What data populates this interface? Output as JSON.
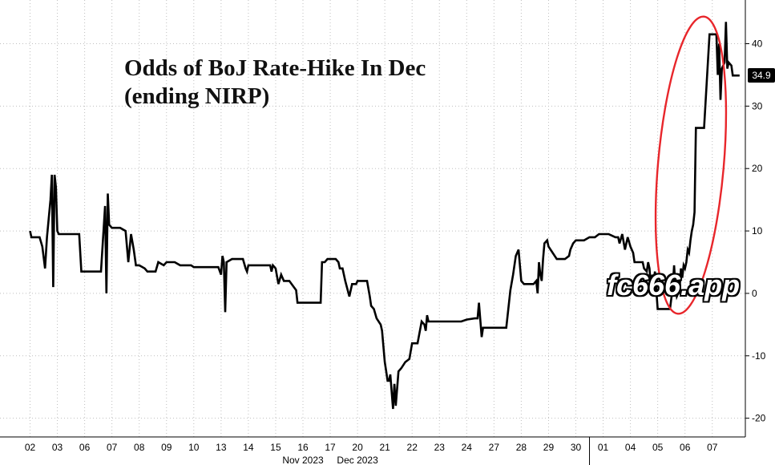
{
  "title_lines": [
    "Odds of BoJ Rate-Hike In Dec",
    "(ending NIRP)"
  ],
  "watermark": "fc666.app",
  "last_value_label": "34.9",
  "colors": {
    "line": "#000000",
    "grid": "#bfbfbf",
    "highlight": "#e8262b",
    "badge": "#000000"
  },
  "chart_data": {
    "type": "line",
    "title": "Odds of BoJ Rate-Hike In Dec (ending NIRP)",
    "y_axis_side": "right",
    "ylim": [
      -23,
      47
    ],
    "yticks": [
      -20,
      -10,
      0,
      10,
      20,
      30,
      40
    ],
    "grid": true,
    "x_ticks": [
      "02",
      "03",
      "06",
      "07",
      "08",
      "09",
      "10",
      "13",
      "14",
      "15",
      "16",
      "17",
      "20",
      "21",
      "22",
      "23",
      "24",
      "27",
      "28",
      "29",
      "30",
      "01",
      "04",
      "05",
      "06",
      "07"
    ],
    "month_labels": [
      {
        "label": "Nov 2023",
        "from": "02",
        "to": "30"
      },
      {
        "label": "Dec 2023",
        "from": "01",
        "to": "07"
      }
    ],
    "last_value": 34.9,
    "series": [
      {
        "values": [
          [
            0,
            10
          ],
          [
            0.05,
            9
          ],
          [
            0.35,
            9
          ],
          [
            0.45,
            7.5
          ],
          [
            0.55,
            4
          ],
          [
            0.62,
            9
          ],
          [
            0.75,
            15
          ],
          [
            0.8,
            19
          ],
          [
            0.85,
            1
          ],
          [
            0.9,
            19
          ],
          [
            0.95,
            17
          ],
          [
            1.0,
            10
          ],
          [
            1.05,
            9.5
          ],
          [
            1.2,
            9.5
          ],
          [
            1.4,
            9.5
          ],
          [
            1.6,
            9.5
          ],
          [
            1.8,
            9.5
          ],
          [
            1.88,
            3.5
          ],
          [
            2.0,
            3.5
          ],
          [
            2.3,
            3.5
          ],
          [
            2.6,
            3.5
          ],
          [
            2.75,
            14
          ],
          [
            2.8,
            0
          ],
          [
            2.85,
            16
          ],
          [
            2.9,
            11
          ],
          [
            3.0,
            10.5
          ],
          [
            3.3,
            10.5
          ],
          [
            3.5,
            10
          ],
          [
            3.6,
            5
          ],
          [
            3.7,
            9.5
          ],
          [
            3.8,
            7
          ],
          [
            3.88,
            4.5
          ],
          [
            4.0,
            4.5
          ],
          [
            4.2,
            4
          ],
          [
            4.3,
            3.5
          ],
          [
            4.6,
            3.5
          ],
          [
            4.7,
            5
          ],
          [
            4.9,
            4.5
          ],
          [
            5.0,
            5
          ],
          [
            5.3,
            5
          ],
          [
            5.5,
            4.5
          ],
          [
            5.7,
            4.5
          ],
          [
            5.9,
            4.5
          ],
          [
            6.0,
            4.2
          ],
          [
            6.3,
            4.2
          ],
          [
            6.6,
            4.2
          ],
          [
            6.9,
            4.2
          ],
          [
            7.0,
            3
          ],
          [
            7.05,
            6
          ],
          [
            7.1,
            5
          ],
          [
            7.15,
            -3
          ],
          [
            7.2,
            5
          ],
          [
            7.4,
            5.5
          ],
          [
            7.6,
            5.5
          ],
          [
            7.8,
            5.5
          ],
          [
            7.9,
            4
          ],
          [
            7.95,
            3.5
          ],
          [
            8.0,
            4.5
          ],
          [
            8.4,
            4.5
          ],
          [
            8.6,
            4.5
          ],
          [
            8.8,
            4.5
          ],
          [
            8.85,
            3.5
          ],
          [
            8.9,
            4.5
          ],
          [
            9.0,
            4
          ],
          [
            9.1,
            1.5
          ],
          [
            9.2,
            3
          ],
          [
            9.3,
            2
          ],
          [
            9.5,
            2
          ],
          [
            9.75,
            0.5
          ],
          [
            9.8,
            -1.5
          ],
          [
            10.0,
            -1.5
          ],
          [
            10.4,
            -1.5
          ],
          [
            10.65,
            -1.5
          ],
          [
            10.7,
            5
          ],
          [
            10.8,
            5
          ],
          [
            10.9,
            5.5
          ],
          [
            11.0,
            5.5
          ],
          [
            11.2,
            5.5
          ],
          [
            11.3,
            5
          ],
          [
            11.35,
            4
          ],
          [
            11.45,
            4
          ],
          [
            11.55,
            2
          ],
          [
            11.7,
            -0.5
          ],
          [
            11.8,
            1.5
          ],
          [
            11.95,
            1.5
          ],
          [
            12.0,
            2
          ],
          [
            12.35,
            2
          ],
          [
            12.45,
            -0.5
          ],
          [
            12.5,
            -2
          ],
          [
            12.6,
            -2.5
          ],
          [
            12.7,
            -4
          ],
          [
            12.85,
            -5
          ],
          [
            12.9,
            -6
          ],
          [
            13.0,
            -11
          ],
          [
            13.05,
            -12.5
          ],
          [
            13.1,
            -14
          ],
          [
            13.15,
            -14
          ],
          [
            13.2,
            -13
          ],
          [
            13.3,
            -18.5
          ],
          [
            13.35,
            -14.5
          ],
          [
            13.4,
            -18
          ],
          [
            13.5,
            -12.5
          ],
          [
            13.6,
            -12
          ],
          [
            13.75,
            -11
          ],
          [
            13.9,
            -10.5
          ],
          [
            14.0,
            -8
          ],
          [
            14.2,
            -8
          ],
          [
            14.35,
            -4.5
          ],
          [
            14.45,
            -5
          ],
          [
            14.5,
            -6
          ],
          [
            14.55,
            -3.5
          ],
          [
            14.6,
            -4.5
          ],
          [
            14.8,
            -4.5
          ],
          [
            15.0,
            -4.5
          ],
          [
            15.5,
            -4.5
          ],
          [
            15.8,
            -4.5
          ],
          [
            16.0,
            -4.2
          ],
          [
            16.3,
            -4
          ],
          [
            16.4,
            -4
          ],
          [
            16.45,
            -1.5
          ],
          [
            16.55,
            -7
          ],
          [
            16.6,
            -5.5
          ],
          [
            16.75,
            -5.5
          ],
          [
            17.0,
            -5.5
          ],
          [
            17.3,
            -5.5
          ],
          [
            17.45,
            -5.5
          ],
          [
            17.55,
            -1.5
          ],
          [
            17.6,
            0.5
          ],
          [
            17.7,
            3
          ],
          [
            17.8,
            6
          ],
          [
            17.9,
            7
          ],
          [
            18.0,
            2
          ],
          [
            18.1,
            1.5
          ],
          [
            18.3,
            1.5
          ],
          [
            18.45,
            1.5
          ],
          [
            18.55,
            2
          ],
          [
            18.6,
            0
          ],
          [
            18.65,
            5
          ],
          [
            18.7,
            3
          ],
          [
            18.75,
            2
          ],
          [
            18.8,
            5.5
          ],
          [
            18.85,
            8
          ],
          [
            18.95,
            8.5
          ],
          [
            19.0,
            7.5
          ],
          [
            19.3,
            5.5
          ],
          [
            19.45,
            5.5
          ],
          [
            19.6,
            5.5
          ],
          [
            19.75,
            6
          ],
          [
            19.8,
            7
          ],
          [
            19.9,
            8
          ],
          [
            20.0,
            8.5
          ],
          [
            20.3,
            8.5
          ],
          [
            20.5,
            9
          ],
          [
            20.7,
            9
          ],
          [
            20.85,
            9.5
          ],
          [
            21.0,
            9.5
          ],
          [
            21.2,
            9.5
          ],
          [
            21.45,
            9
          ],
          [
            21.55,
            9
          ],
          [
            21.6,
            8
          ],
          [
            21.7,
            9.5
          ],
          [
            21.8,
            7
          ],
          [
            21.9,
            9
          ],
          [
            22.0,
            7.5
          ],
          [
            22.1,
            6.5
          ],
          [
            22.15,
            5
          ],
          [
            22.3,
            5
          ],
          [
            22.45,
            5
          ],
          [
            22.5,
            4
          ],
          [
            22.6,
            3.5
          ],
          [
            22.65,
            5
          ],
          [
            22.7,
            4
          ],
          [
            22.75,
            1
          ],
          [
            22.8,
            3
          ],
          [
            22.85,
            2
          ],
          [
            22.9,
            3.5
          ],
          [
            23.0,
            -2.5
          ],
          [
            23.2,
            -2.5
          ],
          [
            23.45,
            -2.5
          ],
          [
            23.55,
            1
          ],
          [
            23.6,
            4.5
          ],
          [
            23.65,
            1
          ],
          [
            23.7,
            -0.5
          ],
          [
            23.8,
            0.5
          ],
          [
            23.85,
            4
          ],
          [
            23.9,
            2.5
          ],
          [
            23.95,
            4.5
          ],
          [
            24.0,
            4
          ],
          [
            24.05,
            5
          ],
          [
            24.1,
            7
          ],
          [
            24.15,
            6.5
          ],
          [
            24.2,
            8.5
          ],
          [
            24.25,
            10
          ],
          [
            24.3,
            11
          ],
          [
            24.35,
            13
          ],
          [
            24.4,
            26.5
          ],
          [
            24.5,
            26.5
          ],
          [
            24.7,
            26.5
          ],
          [
            24.8,
            34
          ],
          [
            24.9,
            41.5
          ],
          [
            25.0,
            41.5
          ],
          [
            25.15,
            41.5
          ],
          [
            25.2,
            35
          ],
          [
            25.25,
            40
          ],
          [
            25.3,
            31
          ],
          [
            25.35,
            36
          ],
          [
            25.45,
            37
          ],
          [
            25.5,
            43.5
          ],
          [
            25.55,
            36
          ],
          [
            25.6,
            37
          ],
          [
            25.7,
            36.5
          ],
          [
            25.75,
            34.9
          ],
          [
            26.0,
            34.9
          ]
        ]
      }
    ]
  }
}
